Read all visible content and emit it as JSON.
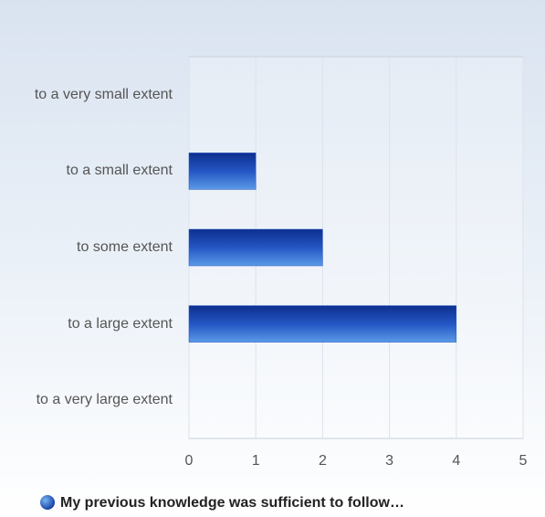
{
  "chart_data": {
    "type": "bar",
    "orientation": "horizontal",
    "categories": [
      "to a very small extent",
      "to a small extent",
      "to some extent",
      "to a large extent",
      "to a very large extent"
    ],
    "series": [
      {
        "name": "My previous knowledge was sufficient to follow…",
        "color": "#2456c4",
        "values": [
          0,
          1,
          2,
          4,
          0
        ]
      }
    ],
    "xlim": [
      0,
      5
    ],
    "xticks": [
      0,
      1,
      2,
      3,
      4,
      5
    ],
    "grid": true,
    "legend": "bottom"
  }
}
